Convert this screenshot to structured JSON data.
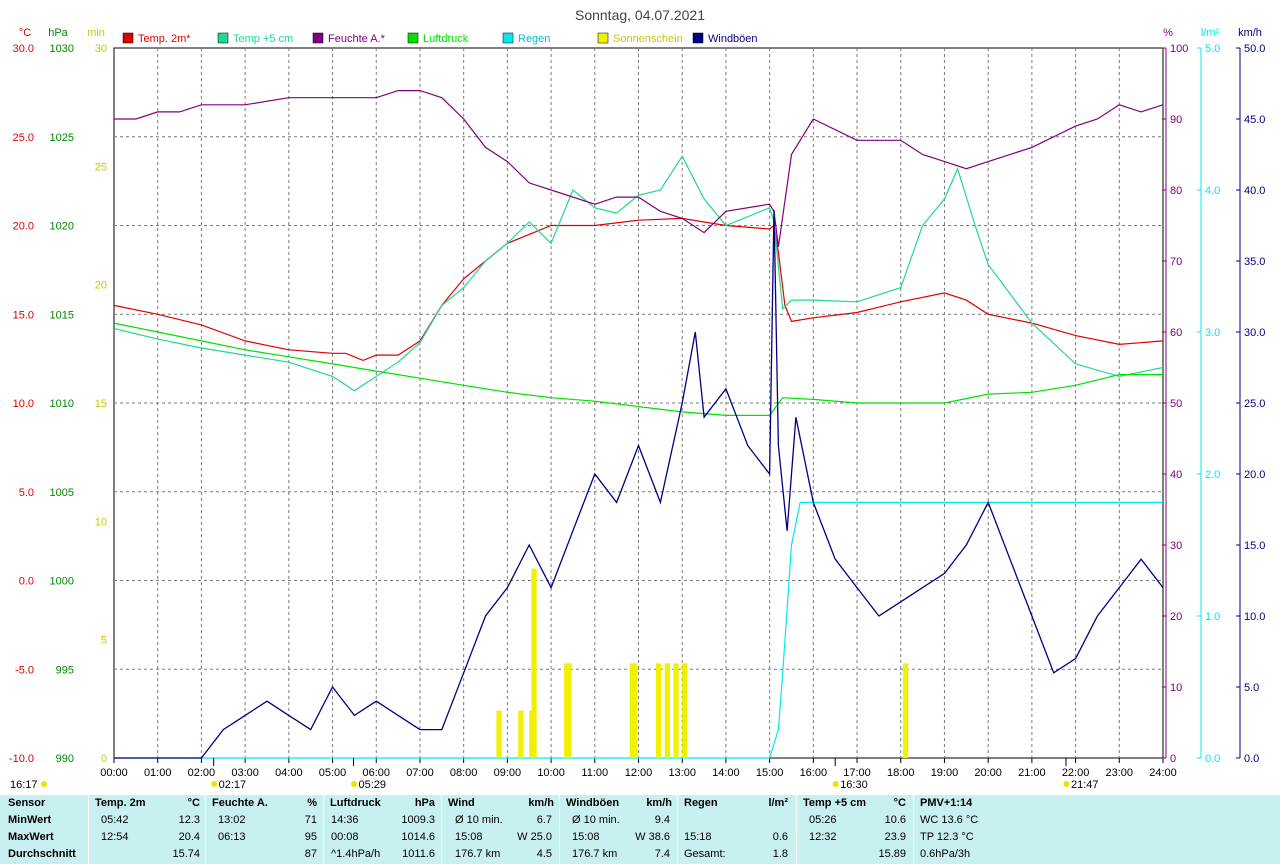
{
  "title": "Sonntag, 04.07.2021",
  "colors": {
    "temp2m": "#e00000",
    "temp5cm": "#20d890",
    "humidity": "#800080",
    "pressure": "#00e000",
    "rain": "#00e8f0",
    "sun": "#f0f000",
    "gust": "#000080",
    "footer_bg": "#c8f0f0"
  },
  "chart_data": {
    "type": "line",
    "x_range": [
      "00:00",
      "24:00"
    ],
    "x_ticks": [
      "00:00",
      "01:00",
      "02:00",
      "03:00",
      "04:00",
      "05:00",
      "06:00",
      "07:00",
      "08:00",
      "09:00",
      "10:00",
      "11:00",
      "12:00",
      "13:00",
      "14:00",
      "15:00",
      "16:00",
      "17:00",
      "18:00",
      "19:00",
      "20:00",
      "21:00",
      "22:00",
      "23:00",
      "24:00"
    ],
    "grid": true,
    "legend_position": "top",
    "axes": {
      "temp": {
        "unit": "°C",
        "range": [
          -10,
          30
        ],
        "ticks": [
          "-10.0",
          "-5.0",
          "0.0",
          "5.0",
          "10.0",
          "15.0",
          "20.0",
          "25.0",
          "30.0"
        ]
      },
      "pressure": {
        "unit": "hPa",
        "range": [
          990,
          1030
        ],
        "ticks": [
          "990",
          "995",
          "1000",
          "1005",
          "1010",
          "1015",
          "1020",
          "1025",
          "1030"
        ]
      },
      "sunshine": {
        "unit": "min",
        "range": [
          0,
          30
        ],
        "ticks": [
          "0",
          "5",
          "10",
          "15",
          "20",
          "25",
          "30"
        ]
      },
      "humidity": {
        "unit": "%",
        "range": [
          0,
          100
        ],
        "ticks": [
          "0",
          "10",
          "20",
          "30",
          "40",
          "50",
          "60",
          "70",
          "80",
          "90",
          "100"
        ]
      },
      "rain": {
        "unit": "l/m²",
        "range": [
          0,
          5
        ],
        "ticks": [
          "0.0",
          "1.0",
          "2.0",
          "3.0",
          "4.0",
          "5.0"
        ]
      },
      "wind": {
        "unit": "km/h",
        "range": [
          0,
          50
        ],
        "ticks": [
          "0.0",
          "5.0",
          "10.0",
          "15.0",
          "20.0",
          "25.0",
          "30.0",
          "35.0",
          "40.0",
          "45.0",
          "50.0"
        ]
      }
    },
    "events": [
      {
        "label": "02:17",
        "x": 2.28,
        "kind": "moon"
      },
      {
        "label": "05:29",
        "x": 5.48,
        "kind": "sunrise"
      },
      {
        "label": "16:30",
        "x": 16.5,
        "kind": "moon"
      },
      {
        "label": "21:47",
        "x": 21.78,
        "kind": "sunset"
      }
    ],
    "corner_label": "16:17",
    "series": [
      {
        "name": "Temp. 2m*",
        "axis": "temp",
        "x": [
          0,
          1,
          2,
          3,
          4,
          5,
          5.3,
          5.7,
          6,
          6.5,
          7,
          7.5,
          8,
          8.5,
          9,
          9.5,
          10,
          11,
          12,
          13,
          13.5,
          14,
          15,
          15.1,
          15.2,
          15.35,
          15.5,
          16,
          17,
          18,
          19,
          19.5,
          20,
          21,
          22,
          23,
          24
        ],
        "values": [
          15.5,
          15.0,
          14.4,
          13.5,
          13.0,
          12.8,
          12.8,
          12.4,
          12.7,
          12.7,
          13.5,
          15.5,
          17.0,
          18.0,
          19.0,
          19.5,
          20.0,
          20.0,
          20.3,
          20.4,
          20.2,
          20.0,
          19.8,
          20.0,
          18.5,
          15.5,
          14.6,
          14.8,
          15.1,
          15.7,
          16.2,
          15.8,
          15.0,
          14.5,
          13.8,
          13.3,
          13.5
        ]
      },
      {
        "name": "Temp +5 cm",
        "axis": "temp",
        "x": [
          0,
          1,
          2,
          3,
          4,
          5,
          5.5,
          6,
          6.5,
          7,
          7.5,
          8,
          8.5,
          9,
          9.5,
          10,
          10.5,
          11,
          11.5,
          12,
          12.5,
          13,
          13.5,
          14,
          15,
          15.1,
          15.3,
          15.5,
          16,
          17,
          18,
          18.5,
          19,
          19.3,
          19.7,
          20,
          21,
          22,
          23,
          24
        ],
        "values": [
          14.2,
          13.6,
          13.1,
          12.7,
          12.3,
          11.5,
          10.7,
          11.5,
          12.3,
          13.4,
          15.5,
          16.5,
          18.0,
          19.0,
          20.2,
          19.0,
          22.0,
          21.0,
          20.7,
          21.7,
          22.0,
          23.9,
          21.5,
          20.0,
          21.0,
          20.2,
          15.3,
          15.8,
          15.8,
          15.7,
          16.5,
          20.0,
          21.5,
          23.2,
          20.0,
          17.8,
          14.5,
          12.2,
          11.5,
          12.0
        ]
      },
      {
        "name": "Feuchte A.*",
        "axis": "humidity",
        "x": [
          0,
          0.5,
          1,
          1.5,
          2,
          3,
          4,
          5,
          6,
          6.5,
          7,
          7.5,
          8,
          8.5,
          9,
          9.5,
          10,
          11,
          11.5,
          12,
          12.5,
          13,
          13.5,
          14,
          15,
          15.1,
          15.2,
          15.5,
          16,
          17,
          18,
          18.5,
          19,
          19.5,
          20,
          21,
          22,
          22.5,
          23,
          23.5,
          24
        ],
        "values": [
          90,
          90,
          91,
          91,
          92,
          92,
          93,
          93,
          93,
          94,
          94,
          93,
          90,
          86,
          84,
          81,
          80,
          78,
          79,
          79,
          77,
          76,
          74,
          77,
          78,
          77,
          72,
          85,
          90,
          87,
          87,
          85,
          84,
          83,
          84,
          86,
          89,
          90,
          92,
          91,
          92
        ]
      },
      {
        "name": "Luftdruck",
        "axis": "pressure",
        "x": [
          0,
          1,
          2,
          3,
          4,
          5,
          6,
          7,
          8,
          9,
          10,
          11,
          12,
          13,
          14,
          15,
          15.3,
          16,
          17,
          18,
          19,
          20,
          21,
          22,
          23,
          24
        ],
        "values": [
          1014.5,
          1014.0,
          1013.5,
          1013.0,
          1012.6,
          1012.2,
          1011.8,
          1011.4,
          1011.0,
          1010.6,
          1010.3,
          1010.1,
          1009.8,
          1009.5,
          1009.3,
          1009.3,
          1010.3,
          1010.2,
          1010.0,
          1010.0,
          1010.0,
          1010.5,
          1010.6,
          1011.0,
          1011.6,
          1011.6
        ]
      },
      {
        "name": "Regen",
        "axis": "rain",
        "x": [
          0,
          15.0,
          15.2,
          15.3,
          15.5,
          15.7,
          24
        ],
        "values": [
          0,
          0,
          0.2,
          0.6,
          1.5,
          1.8,
          1.8
        ]
      },
      {
        "name": "Sonnenschein",
        "axis": "sunshine",
        "type": "bar",
        "x": [
          8.75,
          9.25,
          9.5,
          9.55,
          10.3,
          10.35,
          11.8,
          11.85,
          12.4,
          12.6,
          12.8,
          13.0,
          18.05
        ],
        "values": [
          2,
          2,
          2,
          8,
          4,
          4,
          4,
          4,
          4,
          4,
          4,
          4,
          4
        ]
      },
      {
        "name": "Windböen",
        "axis": "wind",
        "x": [
          0,
          2.0,
          2.5,
          3,
          3.5,
          4,
          4.5,
          5,
          5.5,
          6,
          6.5,
          7,
          7.5,
          8,
          8.5,
          9,
          9.5,
          10,
          10.5,
          11,
          11.5,
          12,
          12.5,
          13,
          13.3,
          13.5,
          14,
          14.5,
          15,
          15.1,
          15.2,
          15.4,
          15.6,
          16,
          16.5,
          17,
          17.5,
          18,
          18.5,
          19,
          19.5,
          20,
          20.5,
          21,
          21.5,
          22,
          22.5,
          23,
          23.5,
          24
        ],
        "values": [
          0,
          0,
          2,
          3,
          4,
          3,
          2,
          5,
          3,
          4,
          3,
          2,
          2,
          6,
          10,
          12,
          15,
          12,
          16,
          20,
          18,
          22,
          18,
          25,
          30,
          24,
          26,
          22,
          20,
          38.6,
          22,
          16,
          24,
          18,
          14,
          12,
          10,
          11,
          12,
          13,
          15,
          18,
          14,
          10,
          6,
          7,
          10,
          12,
          14,
          12
        ]
      }
    ]
  },
  "footer": {
    "headers": {
      "sensor": "Sensor",
      "temp2m": "Temp. 2m",
      "temp2m_unit": "°C",
      "hum": "Feuchte A.",
      "hum_unit": "%",
      "press": "Luftdruck",
      "press_unit": "hPa",
      "wind": "Wind",
      "wind_unit": "km/h",
      "gust": "Windböen",
      "gust_unit": "km/h",
      "rain": "Regen",
      "rain_unit": "l/m²",
      "temp5": "Temp +5 cm",
      "temp5_unit": "°C",
      "pmv": "PMV+1:14"
    },
    "rows": [
      {
        "label": "MinWert",
        "t2_time": "05:42",
        "t2_val": "12.3",
        "hum_time": "13:02",
        "hum_val": "71",
        "press_time": "14:36",
        "press_val": "1009.3",
        "wind_a": "Ø 10 min.",
        "wind_b": "6.7",
        "gust_a": "Ø 10 min.",
        "gust_b": "9.4",
        "rain_time": "",
        "rain_val": "",
        "t5_time": "05:26",
        "t5_val": "10.6",
        "pmv": "WC 13.6 °C"
      },
      {
        "label": "MaxWert",
        "t2_time": "12:54",
        "t2_val": "20.4",
        "hum_time": "06:13",
        "hum_val": "95",
        "press_time": "00:08",
        "press_val": "1014.6",
        "wind_a": "15:08",
        "wind_b": "W 25.0",
        "gust_a": "15:08",
        "gust_b": "W 38.6",
        "rain_time": "15:18",
        "rain_val": "0.6",
        "t5_time": "12:32",
        "t5_val": "23.9",
        "pmv": "TP 12.3 °C"
      },
      {
        "label": "Durchschnitt",
        "t2_time": "",
        "t2_val": "15.74",
        "hum_time": "",
        "hum_val": "87",
        "press_time": "^1.4hPa/h",
        "press_val": "1011.6",
        "wind_a": "176.7 km",
        "wind_b": "4.5",
        "gust_a": "176.7 km",
        "gust_b": "7.4",
        "rain_time": "Gesamt:",
        "rain_val": "1.8",
        "t5_time": "",
        "t5_val": "15.89",
        "pmv": "0.6hPa/3h"
      }
    ]
  }
}
